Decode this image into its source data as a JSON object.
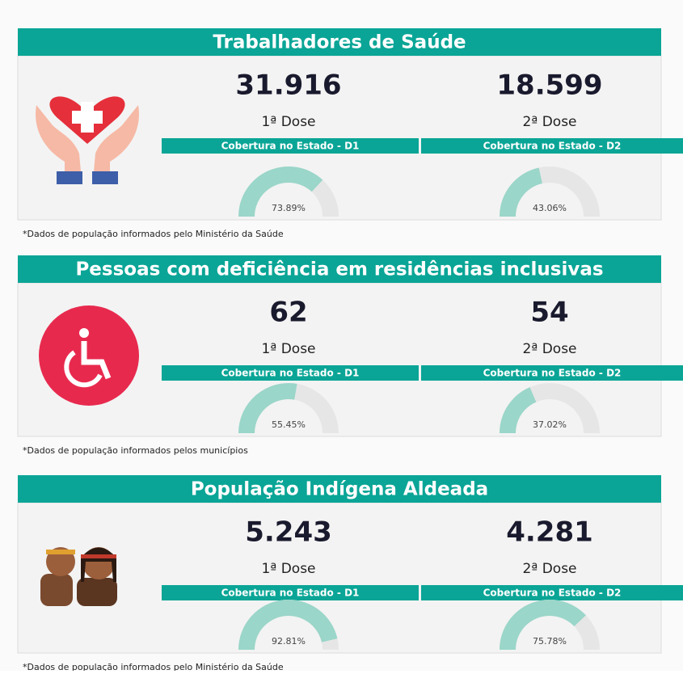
{
  "gauge_range": [
    0,
    100
  ],
  "sections": [
    {
      "title": "Trabalhadores de Saúde",
      "doses": [
        {
          "count": "31.916",
          "label": "1ª Dose",
          "coverage_title": "Cobertura no Estado - D1",
          "coverage": {
            "value": 73.89,
            "label": "73.89%"
          }
        },
        {
          "count": "18.599",
          "label": "2ª Dose",
          "coverage_title": "Cobertura no Estado - D2",
          "coverage": {
            "value": 43.06,
            "label": "43.06%"
          }
        }
      ],
      "note": "*Dados de população informados pelo Ministério da Saúde"
    },
    {
      "title": "Pessoas com deficiência em residências inclusivas",
      "doses": [
        {
          "count": "62",
          "label": "1ª Dose",
          "coverage_title": "Cobertura no Estado - D1",
          "coverage": {
            "value": 55.45,
            "label": "55.45%"
          }
        },
        {
          "count": "54",
          "label": "2ª Dose",
          "coverage_title": "Cobertura no Estado - D2",
          "coverage": {
            "value": 37.02,
            "label": "37.02%"
          }
        }
      ],
      "note": "*Dados de população informados pelos municípios"
    },
    {
      "title": "População Indígena Aldeada",
      "doses": [
        {
          "count": "5.243",
          "label": "1ª Dose",
          "coverage_title": "Cobertura no Estado - D1",
          "coverage": {
            "value": 92.81,
            "label": "92.81%"
          }
        },
        {
          "count": "4.281",
          "label": "2ª Dose",
          "coverage_title": "Cobertura no Estado - D2",
          "coverage": {
            "value": 75.78,
            "label": "75.78%"
          }
        }
      ],
      "note": "*Dados de população informados pelo Ministério da Saúde"
    }
  ]
}
